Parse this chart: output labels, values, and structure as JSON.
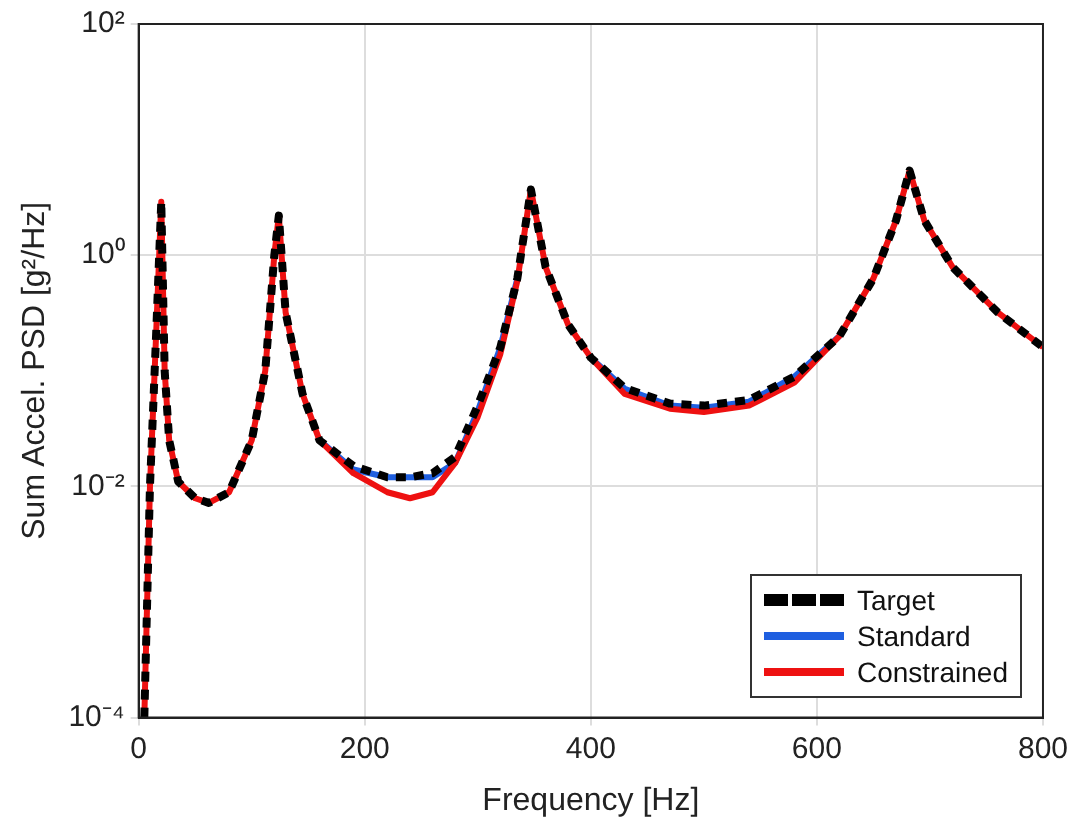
{
  "chart_data": {
    "type": "line",
    "xlabel": "Frequency [Hz]",
    "ylabel": "Sum Accel. PSD [g²/Hz]",
    "log": "y",
    "xlim": [
      0,
      800
    ],
    "xticks": [
      0,
      200,
      400,
      600,
      800
    ],
    "ylim": [
      0.0001,
      100
    ],
    "yticks": [
      {
        "value": 0.0001,
        "label": "10⁻⁴"
      },
      {
        "value": 0.01,
        "label": "10⁻²"
      },
      {
        "value": 1,
        "label": "10⁰"
      },
      {
        "value": 100,
        "label": "10²"
      }
    ],
    "x": [
      5,
      10,
      15,
      20,
      23,
      27,
      35,
      50,
      62,
      80,
      100,
      112,
      120,
      124,
      130,
      145,
      160,
      190,
      220,
      240,
      260,
      280,
      300,
      320,
      335,
      347,
      360,
      380,
      400,
      430,
      470,
      500,
      540,
      580,
      620,
      650,
      670,
      682,
      695,
      720,
      760,
      800
    ],
    "grid": true,
    "legend": "bottom right",
    "marker": "none",
    "series": [
      {
        "name": "Target",
        "color": "#000000",
        "line_style": "dashed",
        "values": [
          0.0001,
          0.01,
          0.16,
          2.9,
          0.1,
          0.025,
          0.011,
          0.0079,
          0.0072,
          0.0089,
          0.025,
          0.1,
          1,
          2.2,
          0.32,
          0.063,
          0.025,
          0.015,
          0.012,
          0.012,
          0.013,
          0.018,
          0.05,
          0.16,
          0.63,
          3.7,
          0.79,
          0.25,
          0.13,
          0.071,
          0.052,
          0.05,
          0.056,
          0.089,
          0.2,
          0.63,
          2.0,
          5.4,
          2.0,
          0.79,
          0.32,
          0.16
        ]
      },
      {
        "name": "Standard",
        "color": "#1f5fe0",
        "line_style": "solid",
        "values": [
          null,
          null,
          null,
          null,
          null,
          null,
          null,
          null,
          null,
          null,
          null,
          null,
          null,
          null,
          null,
          null,
          0.025,
          0.014,
          0.012,
          0.012,
          0.012,
          0.016,
          0.045,
          0.16,
          0.63,
          null,
          null,
          null,
          0.13,
          0.07,
          0.05,
          0.048,
          0.054,
          0.089,
          0.2,
          null,
          null,
          null,
          null,
          null,
          null,
          null
        ]
      },
      {
        "name": "Constrained",
        "color": "#ee1111",
        "line_style": "solid",
        "values": [
          0.0001,
          0.01,
          0.16,
          2.9,
          0.1,
          0.025,
          0.011,
          0.0079,
          0.0072,
          0.0089,
          0.025,
          0.1,
          1,
          2.2,
          0.32,
          0.063,
          0.025,
          0.013,
          0.0089,
          0.0079,
          0.0089,
          0.016,
          0.04,
          0.14,
          0.6,
          3.7,
          0.79,
          0.25,
          0.13,
          0.063,
          0.047,
          0.044,
          0.05,
          0.079,
          0.2,
          0.63,
          2.0,
          5.4,
          2.0,
          0.79,
          0.32,
          0.16
        ]
      }
    ]
  }
}
